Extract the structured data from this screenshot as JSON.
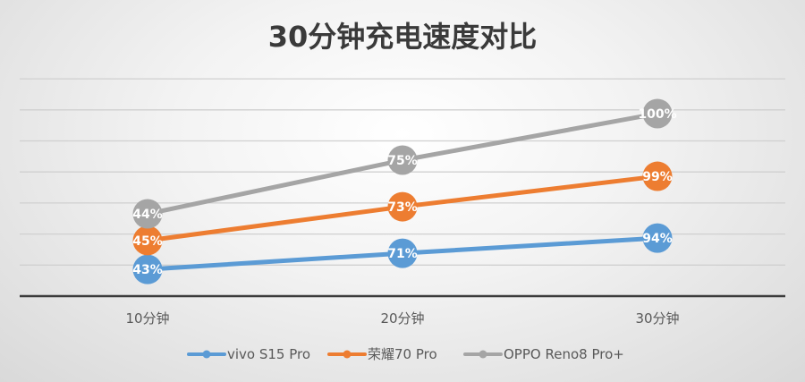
{
  "chart_data": {
    "type": "line",
    "title": "30分钟充电速度对比",
    "categories": [
      "10分钟",
      "20分钟",
      "30分钟"
    ],
    "xlabel": "",
    "ylabel": "",
    "ylim": [
      0,
      7
    ],
    "grid": true,
    "legend_position": "bottom",
    "series": [
      {
        "name": "vivo S15 Pro",
        "color": "#5b9bd5",
        "values": [
          0.86,
          1.38,
          1.87
        ],
        "labels": [
          "43%",
          "71%",
          "94%"
        ]
      },
      {
        "name": "荣耀70 Pro",
        "color": "#ed7d31",
        "values": [
          1.79,
          2.88,
          3.86
        ],
        "labels": [
          "45%",
          "73%",
          "99%"
        ]
      },
      {
        "name": "OPPO Reno8 Pro+",
        "color": "#a5a5a5",
        "values": [
          2.65,
          4.38,
          5.88
        ],
        "labels": [
          "44%",
          "75%",
          "100%"
        ]
      }
    ]
  }
}
